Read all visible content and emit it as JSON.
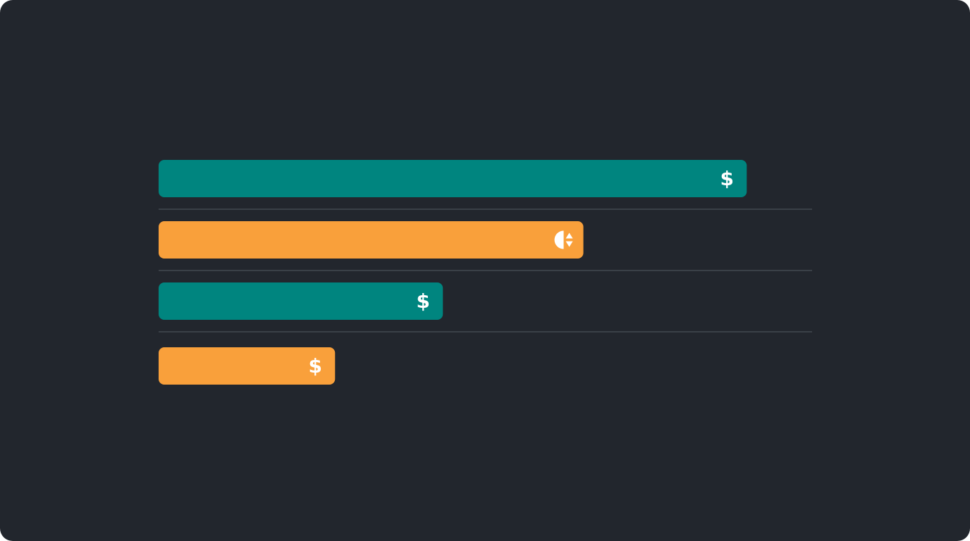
{
  "chart_data": {
    "type": "hbar",
    "values": [
      90,
      65,
      43.5,
      27
    ],
    "colors": [
      "#00857f",
      "#f9a03b",
      "#00857f",
      "#f9a03b"
    ],
    "icons": [
      "$",
      null,
      "$",
      "$"
    ],
    "xlim": [
      0,
      100
    ]
  }
}
